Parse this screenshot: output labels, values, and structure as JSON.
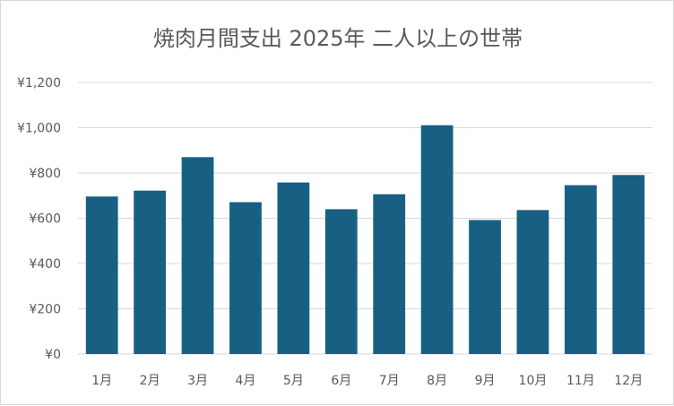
{
  "chart_data": {
    "type": "bar",
    "title": "焼肉月間支出 2025年 二人以上の世帯",
    "xlabel": "",
    "ylabel": "",
    "categories": [
      "1月",
      "2月",
      "3月",
      "4月",
      "5月",
      "6月",
      "7月",
      "8月",
      "9月",
      "10月",
      "11月",
      "12月"
    ],
    "values": [
      696,
      722,
      870,
      671,
      758,
      640,
      706,
      1011,
      592,
      636,
      746,
      791
    ],
    "ylim": [
      0,
      1200
    ],
    "yticks": [
      0,
      200,
      400,
      600,
      800,
      1000,
      1200
    ],
    "ytick_labels": [
      "¥0",
      "¥200",
      "¥400",
      "¥600",
      "¥800",
      "¥1,000",
      "¥1,200"
    ],
    "grid": true,
    "legend": "none",
    "bar_color": "#176083",
    "grid_color": "#d9d9d9"
  }
}
